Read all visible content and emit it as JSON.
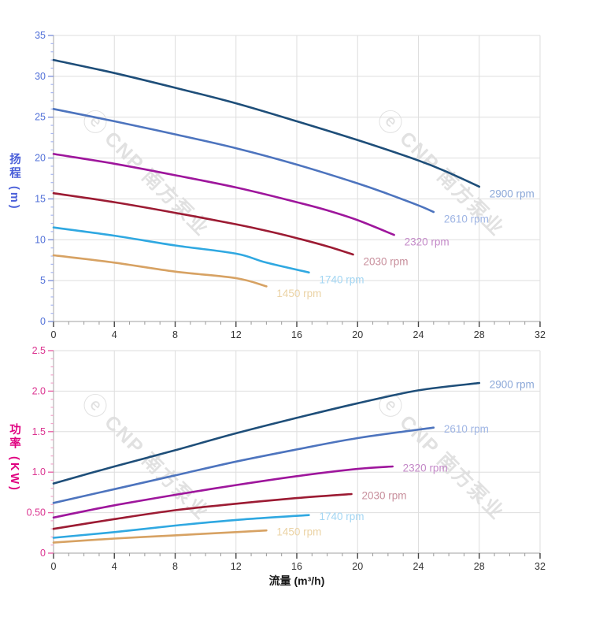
{
  "watermark": {
    "logo_glyph": "ⓔ",
    "text": "CNP 南方泵业"
  },
  "chart_data": [
    {
      "id": "head",
      "type": "line",
      "title": "",
      "ylabel": "扬程 (m)",
      "xlabel": "",
      "xlim": [
        0,
        32
      ],
      "ylim": [
        0,
        35
      ],
      "x_major_ticks": [
        0,
        4,
        8,
        12,
        16,
        20,
        24,
        28,
        32
      ],
      "x_tick_labels": [
        "0",
        "4",
        "8",
        "12",
        "16",
        "20",
        "24",
        "28",
        "32"
      ],
      "x_minor_step": 1,
      "y_major_ticks": [
        0,
        5,
        10,
        15,
        20,
        25,
        30,
        35
      ],
      "y_tick_labels": [
        "0",
        "5",
        "10",
        "15",
        "20",
        "25",
        "30",
        "35"
      ],
      "y_minor_step": 1,
      "grid": true,
      "legend_position": "end-of-line",
      "axis_text_color": "#5170D8",
      "axis_title_color": "#4A5FD9",
      "y_tick_color_major": "#8193DC",
      "y_tick_color_minor": "#A9B7F0",
      "series": [
        {
          "name": "2900 rpm",
          "color": "#1E4E79",
          "label_color": "#8CA8D8",
          "points": [
            [
              0,
              32
            ],
            [
              4,
              30.4
            ],
            [
              8,
              28.6
            ],
            [
              12,
              26.7
            ],
            [
              16,
              24.5
            ],
            [
              20,
              22.2
            ],
            [
              24,
              19.7
            ],
            [
              26,
              18.2
            ],
            [
              28,
              16.5
            ]
          ]
        },
        {
          "name": "2610 rpm",
          "color": "#4D74BE",
          "label_color": "#9FB5E4",
          "points": [
            [
              0,
              26
            ],
            [
              4,
              24.5
            ],
            [
              8,
              22.9
            ],
            [
              12,
              21.2
            ],
            [
              16,
              19.2
            ],
            [
              20,
              16.9
            ],
            [
              22,
              15.6
            ],
            [
              24,
              14.2
            ],
            [
              25,
              13.4
            ]
          ]
        },
        {
          "name": "2320 rpm",
          "color": "#9E169C",
          "label_color": "#C489C8",
          "points": [
            [
              0,
              20.5
            ],
            [
              4,
              19.3
            ],
            [
              8,
              17.9
            ],
            [
              12,
              16.4
            ],
            [
              16,
              14.6
            ],
            [
              18,
              13.6
            ],
            [
              20,
              12.4
            ],
            [
              22.4,
              10.6
            ]
          ]
        },
        {
          "name": "2030 rpm",
          "color": "#9C1B33",
          "label_color": "#C88F9C",
          "points": [
            [
              0,
              15.7
            ],
            [
              4,
              14.6
            ],
            [
              8,
              13.3
            ],
            [
              12,
              11.9
            ],
            [
              14,
              11.1
            ],
            [
              16,
              10.2
            ],
            [
              18,
              9.2
            ],
            [
              19.7,
              8.2
            ]
          ]
        },
        {
          "name": "1740 rpm",
          "color": "#2FA8E1",
          "label_color": "#A3D6F3",
          "points": [
            [
              0,
              11.5
            ],
            [
              4,
              10.5
            ],
            [
              8,
              9.3
            ],
            [
              12,
              8.3
            ],
            [
              14,
              7.2
            ],
            [
              16.8,
              6.0
            ]
          ]
        },
        {
          "name": "1450 rpm",
          "color": "#D7A263",
          "label_color": "#EBD3A5",
          "points": [
            [
              0,
              8.1
            ],
            [
              4,
              7.2
            ],
            [
              8,
              6.1
            ],
            [
              12,
              5.3
            ],
            [
              14,
              4.3
            ]
          ]
        }
      ]
    },
    {
      "id": "power",
      "type": "line",
      "title": "",
      "ylabel": "功率 (KW)",
      "xlabel": "流量 (m³/h)",
      "xlim": [
        0,
        32
      ],
      "ylim": [
        0,
        2.5
      ],
      "x_major_ticks": [
        0,
        4,
        8,
        12,
        16,
        20,
        24,
        28,
        32
      ],
      "x_tick_labels": [
        "0",
        "4",
        "8",
        "12",
        "16",
        "20",
        "24",
        "28",
        "32"
      ],
      "x_minor_step": 1,
      "y_major_ticks": [
        0,
        0.5,
        1.0,
        1.5,
        2.0,
        2.5
      ],
      "y_tick_labels": [
        "0",
        "0.50",
        "1.0",
        "1.5",
        "2.0",
        "2.5"
      ],
      "y_minor_step": 0.1,
      "grid": true,
      "legend_position": "end-of-line",
      "axis_text_color": "#DB3490",
      "axis_title_color": "#E00080",
      "y_tick_color_major": "#E863A8",
      "y_tick_color_minor": "#F2A6CB",
      "series": [
        {
          "name": "2900 rpm",
          "color": "#1E4E79",
          "label_color": "#8CA8D8",
          "points": [
            [
              0,
              0.86
            ],
            [
              4,
              1.07
            ],
            [
              8,
              1.27
            ],
            [
              12,
              1.48
            ],
            [
              16,
              1.67
            ],
            [
              20,
              1.85
            ],
            [
              24,
              2.01
            ],
            [
              28,
              2.1
            ]
          ]
        },
        {
          "name": "2610 rpm",
          "color": "#4D74BE",
          "label_color": "#9FB5E4",
          "points": [
            [
              0,
              0.62
            ],
            [
              4,
              0.79
            ],
            [
              8,
              0.96
            ],
            [
              12,
              1.13
            ],
            [
              16,
              1.28
            ],
            [
              20,
              1.42
            ],
            [
              25,
              1.55
            ]
          ]
        },
        {
          "name": "2320 rpm",
          "color": "#9E169C",
          "label_color": "#C489C8",
          "points": [
            [
              0,
              0.44
            ],
            [
              4,
              0.59
            ],
            [
              8,
              0.72
            ],
            [
              12,
              0.84
            ],
            [
              16,
              0.95
            ],
            [
              20,
              1.04
            ],
            [
              22.3,
              1.07
            ]
          ]
        },
        {
          "name": "2030 rpm",
          "color": "#9C1B33",
          "label_color": "#C88F9C",
          "points": [
            [
              0,
              0.3
            ],
            [
              4,
              0.42
            ],
            [
              8,
              0.53
            ],
            [
              12,
              0.61
            ],
            [
              16,
              0.68
            ],
            [
              19.6,
              0.73
            ]
          ]
        },
        {
          "name": "1740 rpm",
          "color": "#2FA8E1",
          "label_color": "#A3D6F3",
          "points": [
            [
              0,
              0.19
            ],
            [
              4,
              0.26
            ],
            [
              8,
              0.34
            ],
            [
              12,
              0.41
            ],
            [
              16.8,
              0.47
            ]
          ]
        },
        {
          "name": "1450 rpm",
          "color": "#D7A263",
          "label_color": "#EBD3A5",
          "points": [
            [
              0,
              0.13
            ],
            [
              4,
              0.18
            ],
            [
              8,
              0.22
            ],
            [
              12,
              0.26
            ],
            [
              14,
              0.28
            ]
          ]
        }
      ]
    }
  ]
}
